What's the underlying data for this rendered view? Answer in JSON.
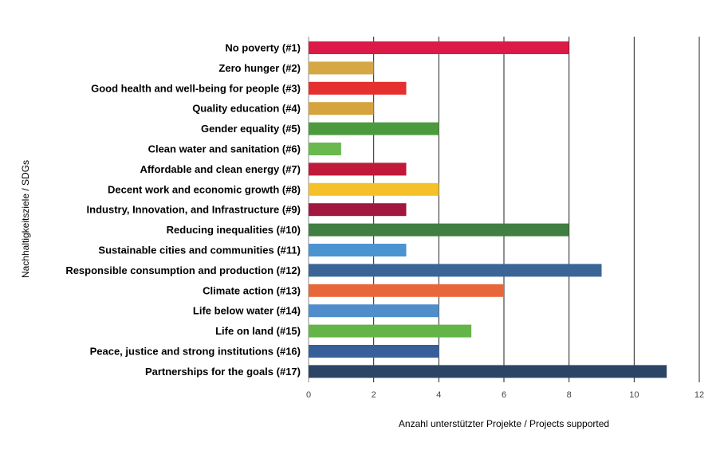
{
  "chart_data": {
    "type": "bar",
    "orientation": "horizontal",
    "title": "",
    "xlabel": "Anzahl unterstützter Projekte / Projects supported",
    "ylabel": "Nachhaltigkeitsziele / SDGs",
    "xlim": [
      0,
      12
    ],
    "xticks": [
      0,
      2,
      4,
      6,
      8,
      10,
      12
    ],
    "grid": "vertical",
    "legend": "none",
    "categories": [
      "No poverty (#1)",
      "Zero hunger (#2)",
      "Good health and well-being for people (#3)",
      "Quality education (#4)",
      "Gender equality (#5)",
      "Clean water and sanitation (#6)",
      "Affordable and clean energy (#7)",
      "Decent work and economic growth (#8)",
      "Industry, Innovation, and Infrastructure (#9)",
      "Reducing inequalities (#10)",
      "Sustainable cities and communities (#11)",
      "Responsible consumption and production (#12)",
      "Climate action (#13)",
      "Life below water (#14)",
      "Life on land (#15)",
      "Peace, justice and strong institutions (#16)",
      "Partnerships for the goals (#17)"
    ],
    "values": [
      8,
      2,
      3,
      2,
      4,
      1,
      3,
      4,
      3,
      8,
      3,
      9,
      6,
      4,
      5,
      4,
      11
    ],
    "colors": [
      "#dc1a47",
      "#d6a745",
      "#e5302f",
      "#d6a43f",
      "#4b9a3e",
      "#69b94f",
      "#c1193a",
      "#f4c12a",
      "#a1173f",
      "#407e42",
      "#4b93d1",
      "#3b6597",
      "#e8673a",
      "#4f8ecb",
      "#64b547",
      "#37609a",
      "#2c4466"
    ]
  }
}
